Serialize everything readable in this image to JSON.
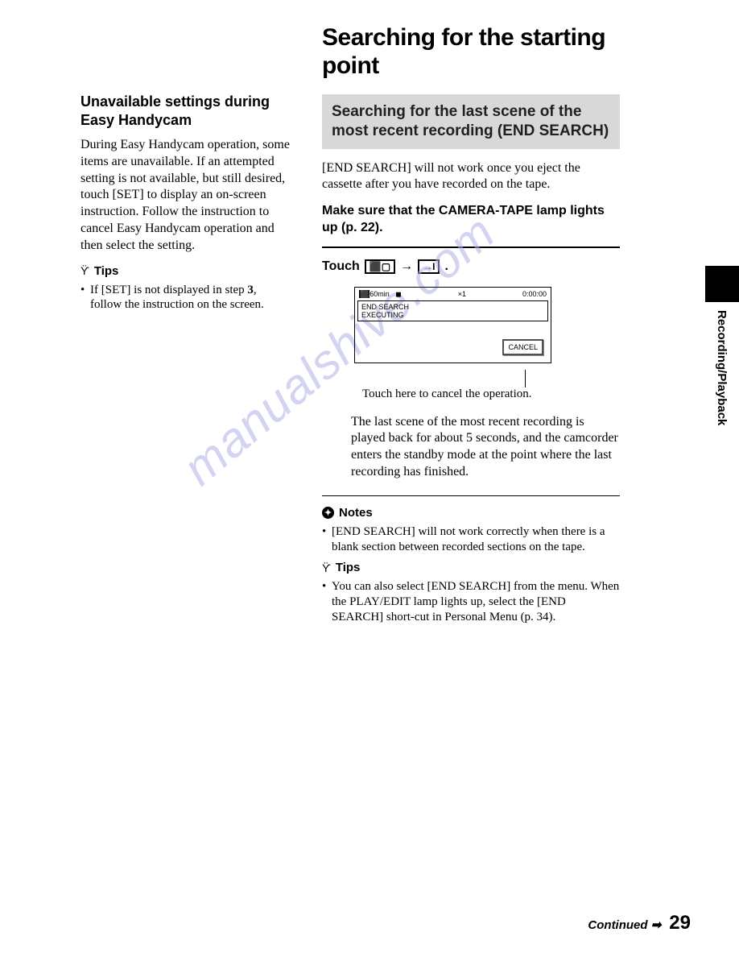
{
  "left": {
    "heading": "Unavailable settings during Easy Handycam",
    "body": "During Easy Handycam operation, some items are unavailable. If an attempted setting is not available, but still desired, touch [SET] to display an on-screen instruction. Follow the instruction to cancel Easy Handycam operation and then select the setting.",
    "tips_label": "Tips",
    "tip_prefix": "If [SET] is not displayed in step ",
    "tip_bold": "3",
    "tip_suffix": ", follow the instruction on the screen."
  },
  "right": {
    "main_title": "Searching for the starting point",
    "gray_box": "Searching for the last scene of the most recent recording (END SEARCH)",
    "intro": "[END SEARCH] will not work once you eject the cassette after you have recorded on the tape.",
    "bold_instruction": "Make sure that the CAMERA-TAPE lamp lights up (p. 22).",
    "touch_label": "Touch",
    "screen": {
      "time_left": "60min",
      "mult": "×1",
      "time_right": "0:00:00",
      "line1": "END SEARCH",
      "line2": "EXECUTING",
      "cancel": "CANCEL"
    },
    "caption": "Touch here to cancel the operation.",
    "result_text": "The last scene of the most recent recording is played back for about 5 seconds, and the camcorder enters the standby mode at the point where the last recording has finished.",
    "notes_label": "Notes",
    "note1": "[END SEARCH] will not work correctly when there is a blank section between recorded sections on the tape.",
    "tips_label": "Tips",
    "tip1": "You can also select [END SEARCH] from the menu. When the PLAY/EDIT lamp lights up, select the [END SEARCH] short-cut in Personal Menu (p. 34)."
  },
  "side_tab": "Recording/Playback",
  "footer": {
    "continued": "Continued ➡",
    "page": "29"
  },
  "watermark": "manualshive.com"
}
